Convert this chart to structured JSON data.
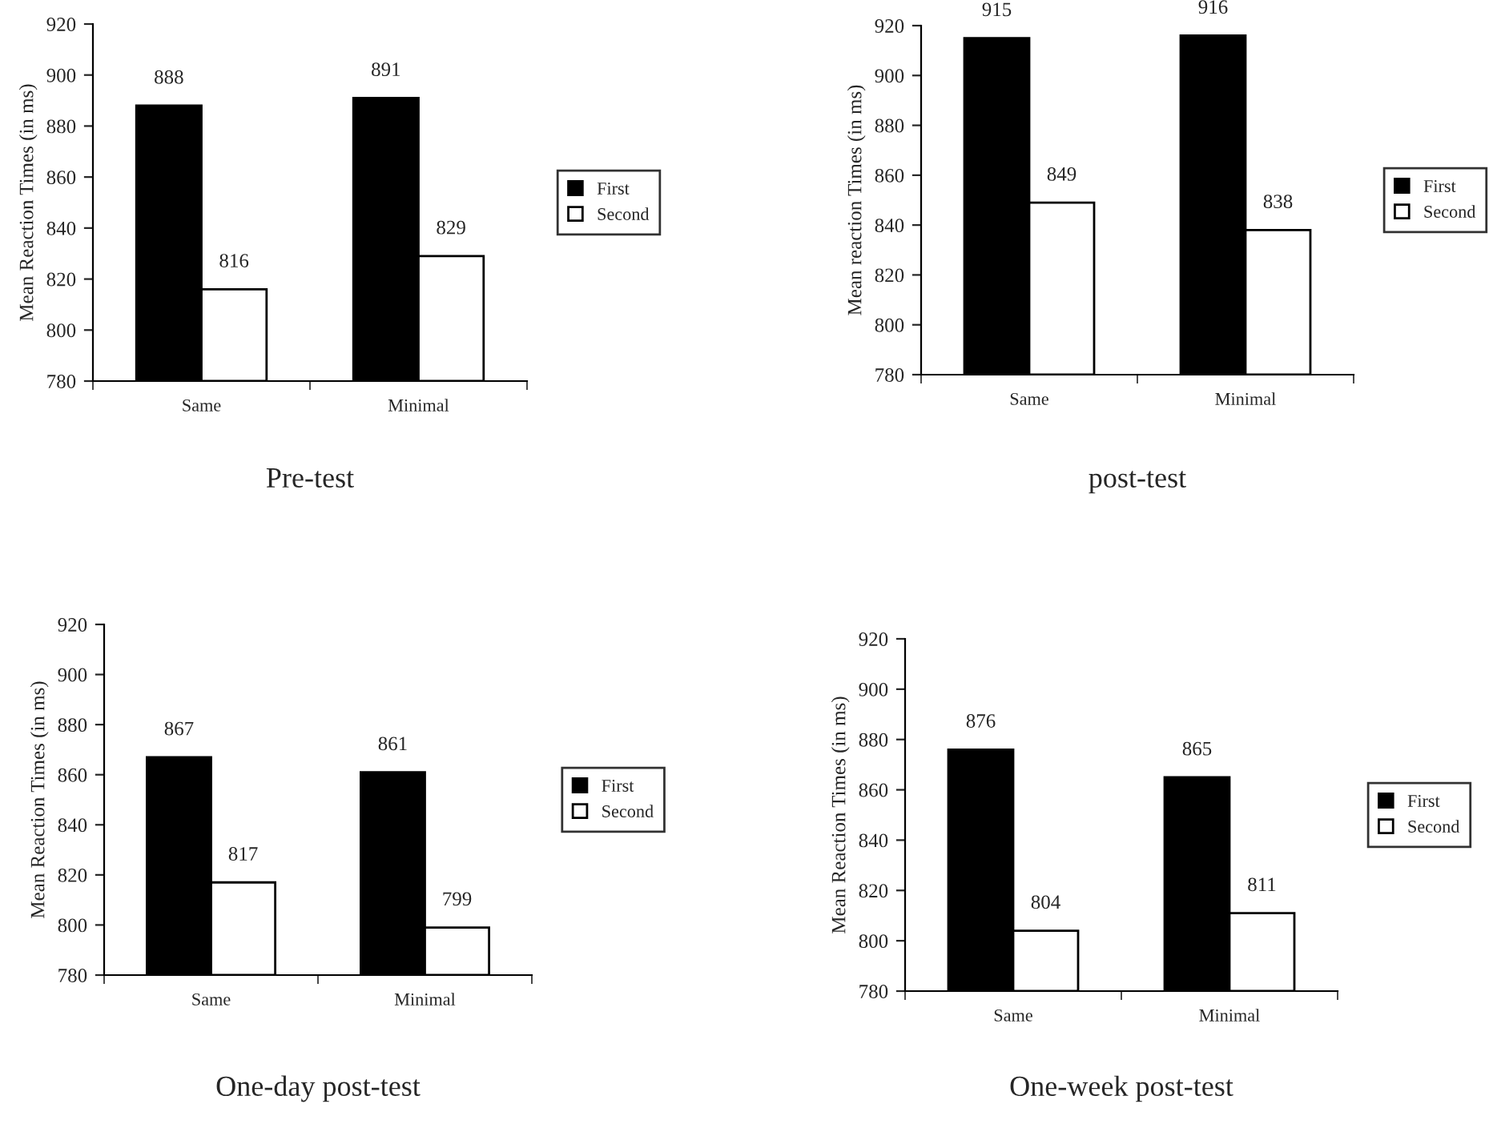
{
  "chart_data": [
    {
      "type": "bar",
      "title": "Pre-test",
      "ylabel": "Mean Reaction Times (in ms)",
      "categories": [
        "Same",
        "Minimal"
      ],
      "series": [
        {
          "name": "First",
          "color": "#000000",
          "values": [
            888,
            891
          ]
        },
        {
          "name": "Second",
          "color": "#ffffff",
          "values": [
            816,
            829
          ]
        }
      ],
      "ylim": [
        780,
        920
      ],
      "yticks": [
        780,
        800,
        820,
        840,
        860,
        880,
        900,
        920
      ],
      "data_labels": true,
      "legend": "right",
      "grid": false
    },
    {
      "type": "bar",
      "title": "post-test",
      "ylabel": "Mean reaction Times (in ms)",
      "categories": [
        "Same",
        "Minimal"
      ],
      "series": [
        {
          "name": "First",
          "color": "#000000",
          "values": [
            915,
            916
          ]
        },
        {
          "name": "Second",
          "color": "#ffffff",
          "values": [
            849,
            838
          ]
        }
      ],
      "ylim": [
        780,
        920
      ],
      "yticks": [
        780,
        800,
        820,
        840,
        860,
        880,
        900,
        920
      ],
      "data_labels": true,
      "legend": "right",
      "grid": false
    },
    {
      "type": "bar",
      "title": "One-day post-test",
      "ylabel": "Mean Reaction Times (in ms)",
      "categories": [
        "Same",
        "Minimal"
      ],
      "series": [
        {
          "name": "First",
          "color": "#000000",
          "values": [
            867,
            861
          ]
        },
        {
          "name": "Second",
          "color": "#ffffff",
          "values": [
            817,
            799
          ]
        }
      ],
      "ylim": [
        780,
        920
      ],
      "yticks": [
        780,
        800,
        820,
        840,
        860,
        880,
        900,
        920
      ],
      "data_labels": true,
      "legend": "right",
      "grid": false
    },
    {
      "type": "bar",
      "title": "One-week post-test",
      "ylabel": "Mean Reaction Times (in ms)",
      "categories": [
        "Same",
        "Minimal"
      ],
      "series": [
        {
          "name": "First",
          "color": "#000000",
          "values": [
            876,
            865
          ]
        },
        {
          "name": "Second",
          "color": "#ffffff",
          "values": [
            804,
            811
          ]
        }
      ],
      "ylim": [
        780,
        920
      ],
      "yticks": [
        780,
        800,
        820,
        840,
        860,
        880,
        900,
        920
      ],
      "data_labels": true,
      "legend": "right",
      "grid": false
    }
  ]
}
